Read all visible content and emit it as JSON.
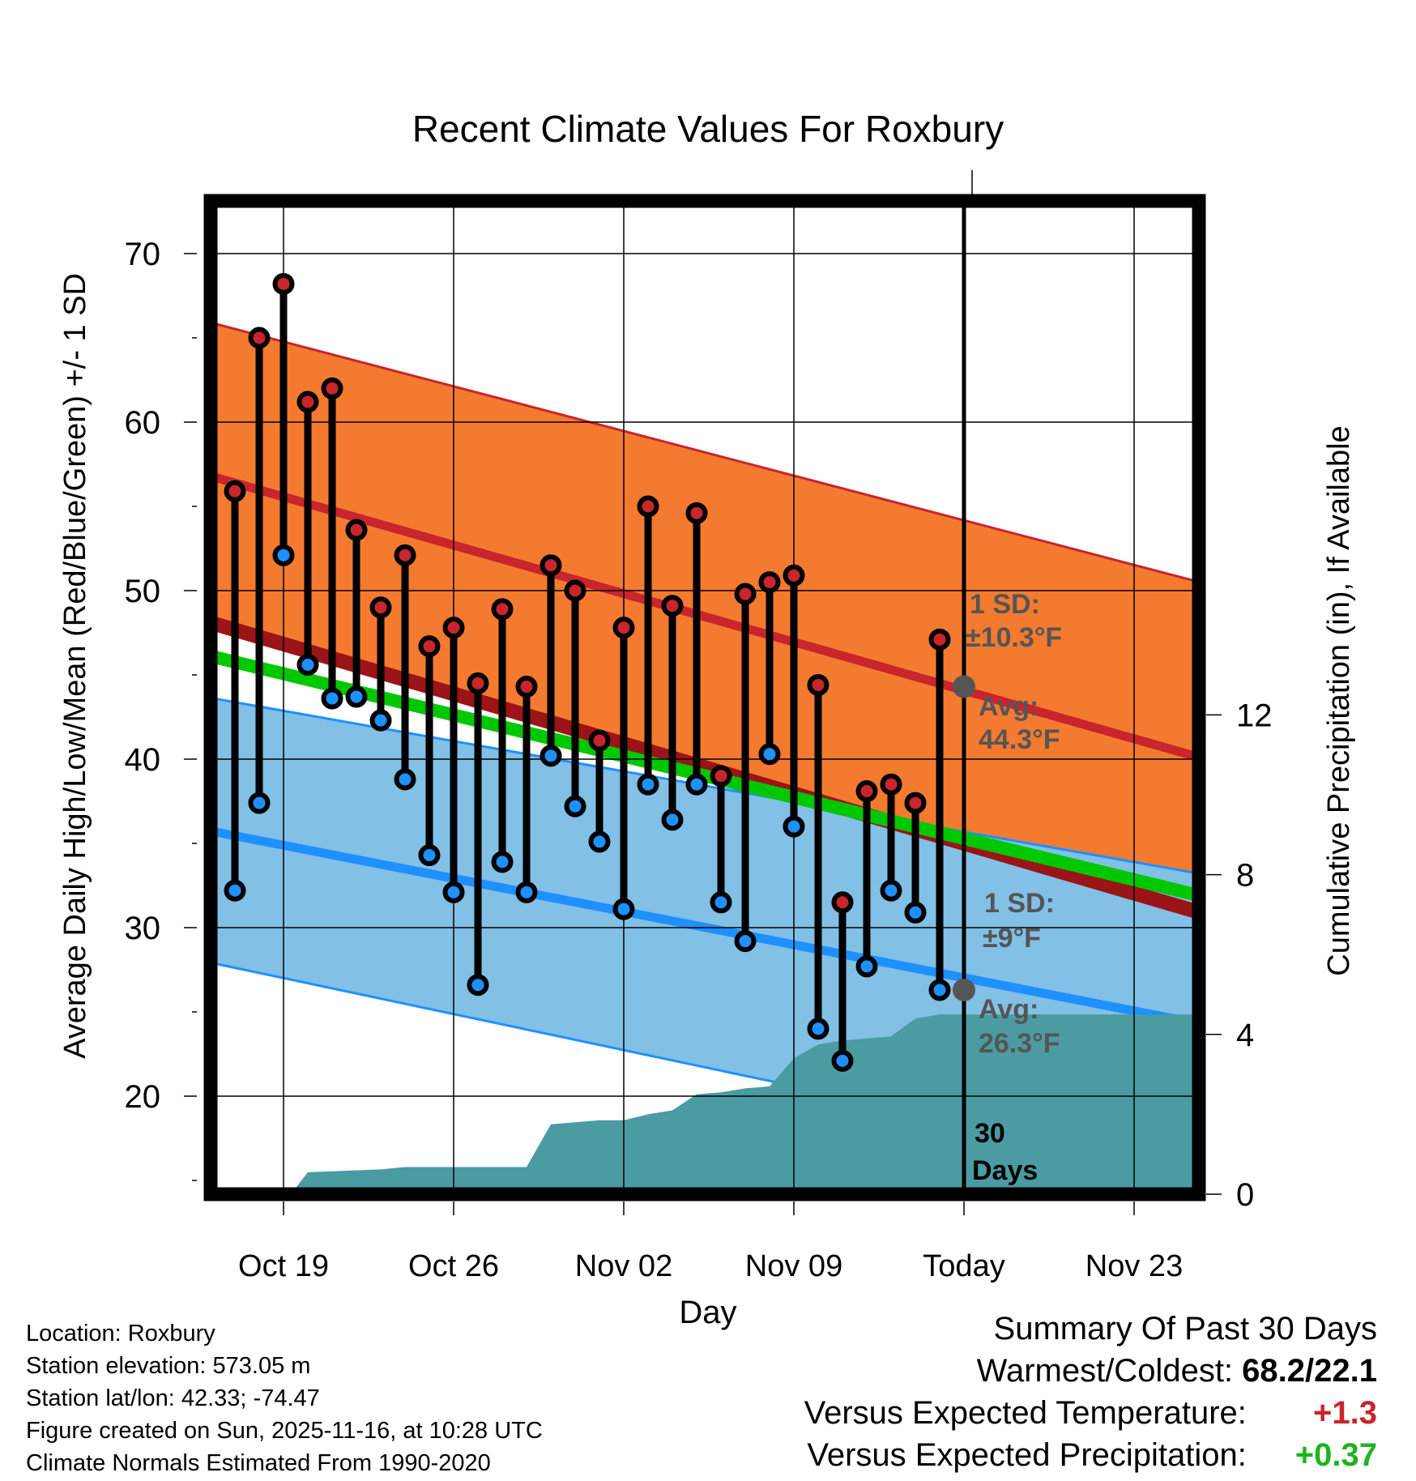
{
  "chart_data": {
    "type": "line",
    "title": "Recent Climate Values For Roxbury",
    "xlabel": "Day",
    "ylabel": "Average Daily High/Low/Mean (Red/Blue/Green) +/- 1 SD",
    "y2label": "Cumulative Precipitation (in), If Available",
    "ylim": [
      14.5,
      73.5
    ],
    "y_ticks": [
      20,
      30,
      40,
      50,
      60,
      70
    ],
    "y2lim": [
      -0.2,
      25
    ],
    "y2_ticks": [
      0,
      4,
      8,
      12
    ],
    "xlim": [
      -3.25,
      37.7
    ],
    "x_ticks": [
      {
        "day": 0,
        "label": "Oct 19"
      },
      {
        "day": 7,
        "label": "Oct 26"
      },
      {
        "day": 14,
        "label": "Nov 02"
      },
      {
        "day": 21,
        "label": "Nov 09"
      },
      {
        "day": 28,
        "label": "Today"
      },
      {
        "day": 35,
        "label": "Nov 23"
      }
    ],
    "today_day": 28,
    "normals": {
      "high_avg": [
        [
          -3.25,
          56.9
        ],
        [
          37.7,
          40.1
        ]
      ],
      "high_upper": [
        [
          -3.25,
          66.0
        ],
        [
          37.7,
          50.5
        ]
      ],
      "high_lower": [
        [
          -3.25,
          48.2
        ],
        [
          37.7,
          30.9
        ]
      ],
      "low_avg": [
        [
          -3.25,
          35.8
        ],
        [
          37.7,
          24.3
        ]
      ],
      "low_upper": [
        [
          -3.25,
          43.7
        ],
        [
          37.7,
          33.2
        ]
      ],
      "low_lower": [
        [
          -3.25,
          28.0
        ],
        [
          37.7,
          15.5
        ]
      ],
      "mean_avg": [
        [
          -3.25,
          46.2
        ],
        [
          37.7,
          31.9
        ]
      ]
    },
    "series": [
      {
        "name": "Daily High",
        "color": "#c8252c",
        "x": [
          -2,
          -1,
          0,
          1,
          2,
          3,
          4,
          5,
          6,
          7,
          8,
          9,
          10,
          11,
          12,
          13,
          14,
          15,
          16,
          17,
          18,
          19,
          20,
          21,
          22,
          23,
          24,
          25,
          26,
          27
        ],
        "values": [
          55.9,
          65.0,
          68.2,
          61.2,
          62.0,
          53.6,
          49.0,
          52.1,
          46.7,
          47.8,
          44.5,
          48.9,
          44.3,
          51.5,
          50.0,
          41.1,
          47.8,
          55.0,
          49.1,
          54.6,
          39.0,
          49.8,
          50.5,
          50.9,
          44.4,
          31.5,
          38.1,
          38.5,
          37.4,
          47.1
        ]
      },
      {
        "name": "Daily Low",
        "color": "#1e90ff",
        "x": [
          -2,
          -1,
          0,
          1,
          2,
          3,
          4,
          5,
          6,
          7,
          8,
          9,
          10,
          11,
          12,
          13,
          14,
          15,
          16,
          17,
          18,
          19,
          20,
          21,
          22,
          23,
          24,
          25,
          26,
          27
        ],
        "values": [
          32.2,
          37.4,
          52.1,
          45.6,
          43.6,
          43.7,
          42.3,
          38.8,
          34.3,
          32.1,
          26.6,
          33.9,
          32.1,
          40.2,
          37.2,
          35.1,
          31.1,
          38.5,
          36.4,
          38.5,
          31.5,
          29.2,
          40.3,
          36.0,
          24.0,
          22.1,
          27.7,
          32.2,
          30.9,
          26.3
        ]
      },
      {
        "name": "Cumulative Precipitation",
        "color": "#4a9ba2",
        "axis": "right",
        "x": [
          -3.25,
          0.3,
          1.0,
          4.0,
          5.0,
          10.0,
          11.0,
          12.0,
          13.0,
          14.0,
          15.0,
          16.0,
          17.0,
          18.0,
          19.0,
          20.0,
          21.0,
          22.0,
          23.0,
          24.0,
          25.0,
          26.0,
          27.0,
          27.8,
          28.0,
          37.7
        ],
        "values": [
          0,
          0,
          0.55,
          0.62,
          0.68,
          0.68,
          1.75,
          1.8,
          1.85,
          1.85,
          2.0,
          2.1,
          2.5,
          2.55,
          2.65,
          2.7,
          3.4,
          3.75,
          3.85,
          3.9,
          3.95,
          4.4,
          4.5,
          4.5,
          4.5,
          4.5
        ]
      }
    ],
    "annotations": {
      "high_sd_label": "1 SD:",
      "high_sd_value": "±10.3°F",
      "high_avg_label": "Avg:",
      "high_avg_value": "44.3°F",
      "high_avg_today": 44.3,
      "low_sd_label": "1 SD:",
      "low_sd_value": "±9°F",
      "low_avg_label": "Avg:",
      "low_avg_value": "26.3°F",
      "low_avg_today": 26.3,
      "days_number": "30",
      "days_word": "Days"
    }
  },
  "station_info": {
    "location": "Location: Roxbury",
    "elevation": "Station elevation: 573.05 m",
    "latlon": "Station lat/lon: 42.33; -74.47",
    "created": "Figure created on Sun, 2025-11-16, at 10:28 UTC",
    "normals": "Climate Normals Estimated From 1990-2020"
  },
  "summary": {
    "title": "Summary Of Past 30 Days",
    "warmest_coldest_label": "Warmest/Coldest:",
    "warmest_coldest_value": "68.2/22.1",
    "temp_label": "Versus Expected Temperature:",
    "temp_value": "+1.3",
    "precip_label": "Versus Expected Precipitation:",
    "precip_value": "+0.37"
  },
  "colors": {
    "high_band": "#f47a30",
    "high_line": "#c8252c",
    "low_band": "#82c0e6",
    "low_line": "#1e90ff",
    "mean_line": "#00c800",
    "precip": "#4a9ba2",
    "annotation": "#555555",
    "temp_delta": "#c8252c",
    "precip_delta": "#1fb31f",
    "dark_red": "#9a1418"
  }
}
